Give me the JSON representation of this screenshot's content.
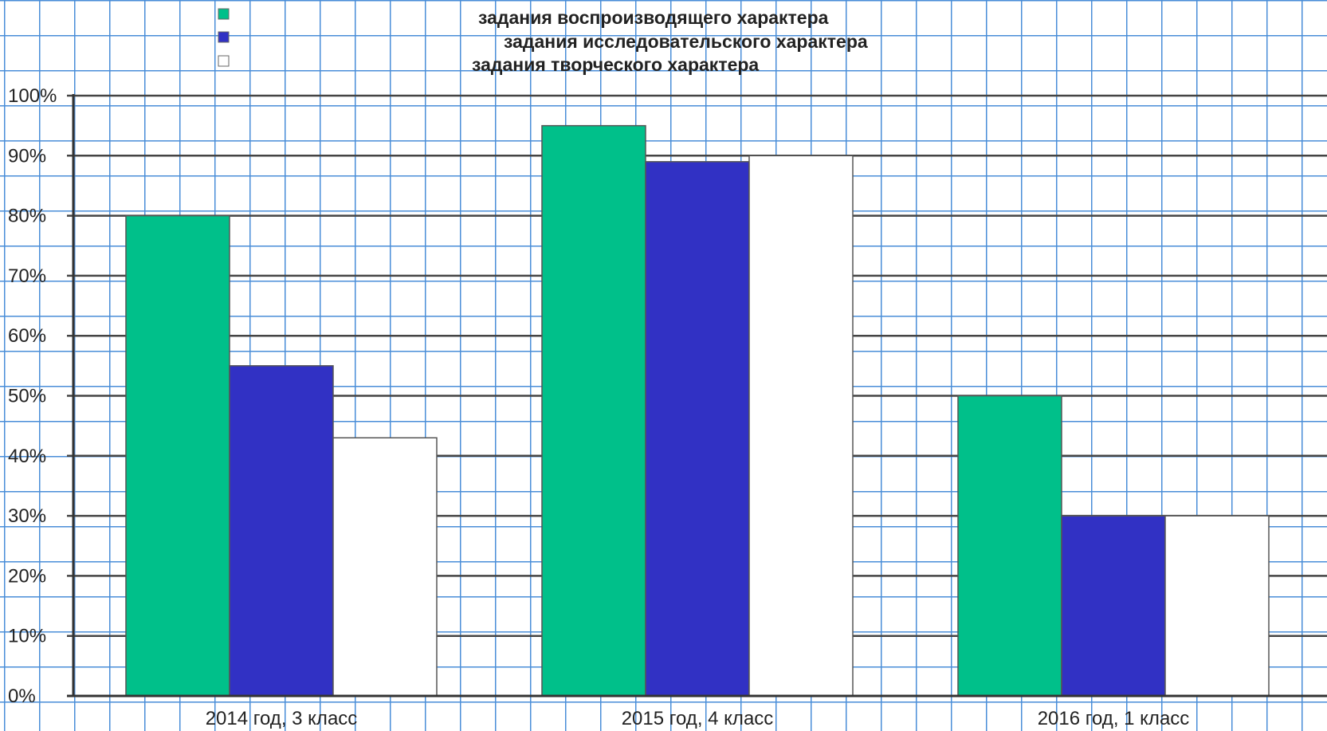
{
  "chart_data": {
    "type": "bar",
    "categories": [
      "2014 год, 3 класс",
      "2015 год, 4 класс",
      "2016 год, 1 класс"
    ],
    "series": [
      {
        "name": "задания воспроизводящего характера",
        "color": "#00c08a",
        "values": [
          80,
          95,
          50
        ]
      },
      {
        "name": "задания исследовательского характера",
        "color": "#3131c4",
        "values": [
          55,
          89,
          30
        ]
      },
      {
        "name": "задания творческого характера",
        "color": "#ffffff",
        "values": [
          43,
          90,
          30
        ]
      }
    ],
    "ylim": [
      0,
      100
    ],
    "yticks": [
      "0%",
      "10%",
      "20%",
      "30%",
      "40%",
      "50%",
      "60%",
      "70%",
      "80%",
      "90%",
      "100%"
    ],
    "grid": true,
    "legend_position": "top"
  }
}
